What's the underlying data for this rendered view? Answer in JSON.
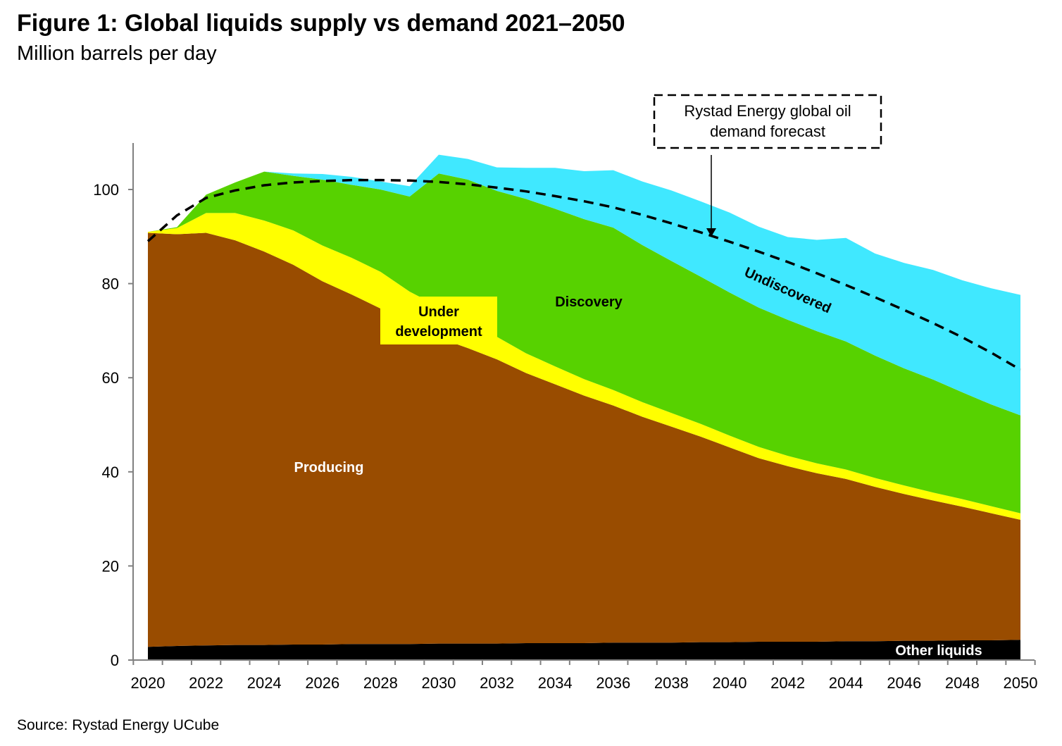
{
  "title": "Figure 1: Global liquids supply vs demand 2021–2050",
  "subtitle": "Million barrels per day",
  "source": "Source: Rystad Energy UCube",
  "chart_data": {
    "type": "area",
    "title": "Figure 1: Global liquids supply vs demand 2021–2050",
    "ylabel": "Million barrels per day",
    "xlabel": "",
    "ylim": [
      0,
      110
    ],
    "xlim": [
      2020,
      2050
    ],
    "y_ticks": [
      0,
      20,
      40,
      60,
      80,
      100
    ],
    "x_ticks": [
      2020,
      2022,
      2024,
      2026,
      2028,
      2030,
      2032,
      2034,
      2036,
      2038,
      2040,
      2042,
      2044,
      2046,
      2048,
      2050
    ],
    "x": [
      2020,
      2021,
      2022,
      2023,
      2024,
      2025,
      2026,
      2027,
      2028,
      2029,
      2030,
      2031,
      2032,
      2033,
      2034,
      2035,
      2036,
      2037,
      2038,
      2039,
      2040,
      2041,
      2042,
      2043,
      2044,
      2045,
      2046,
      2047,
      2048,
      2049,
      2050
    ],
    "series": [
      {
        "name": "Other liquids",
        "color": "#000000",
        "values": [
          2.8,
          3.0,
          3.1,
          3.2,
          3.2,
          3.3,
          3.3,
          3.4,
          3.4,
          3.4,
          3.5,
          3.5,
          3.5,
          3.6,
          3.6,
          3.6,
          3.7,
          3.7,
          3.7,
          3.8,
          3.8,
          3.9,
          3.9,
          3.9,
          4.0,
          4.0,
          4.1,
          4.1,
          4.2,
          4.2,
          4.3
        ]
      },
      {
        "name": "Producing",
        "color": "#994C00",
        "values": [
          88.0,
          87.5,
          87.7,
          86.0,
          83.6,
          80.7,
          77.2,
          74.3,
          71.3,
          67.6,
          65.0,
          62.8,
          60.4,
          57.4,
          55.0,
          52.6,
          50.4,
          48.0,
          45.9,
          43.7,
          41.4,
          39.0,
          37.3,
          35.8,
          34.5,
          32.8,
          31.2,
          29.8,
          28.4,
          27.0,
          25.5
        ]
      },
      {
        "name": "Under development",
        "color": "#FFFF00",
        "values": [
          0.2,
          1.3,
          4.2,
          5.8,
          6.6,
          7.3,
          7.6,
          7.8,
          7.8,
          7.3,
          6.6,
          5.8,
          4.8,
          4.2,
          3.8,
          3.5,
          3.3,
          3.1,
          2.9,
          2.7,
          2.5,
          2.4,
          2.2,
          2.1,
          2.0,
          1.9,
          1.8,
          1.7,
          1.6,
          1.5,
          1.4
        ]
      },
      {
        "name": "Discovery",
        "color": "#57D200",
        "values": [
          0.0,
          0.2,
          3.9,
          6.5,
          10.4,
          11.6,
          14.0,
          15.5,
          17.5,
          20.2,
          28.3,
          30.0,
          31.0,
          32.8,
          33.5,
          34.0,
          34.5,
          33.4,
          32.3,
          31.3,
          30.4,
          29.6,
          28.9,
          28.1,
          27.2,
          26.0,
          24.9,
          24.0,
          22.7,
          21.6,
          20.8
        ]
      },
      {
        "name": "Undiscovered",
        "color": "#40E8FF",
        "values": [
          0.0,
          0.0,
          0.0,
          0.0,
          0.0,
          0.5,
          1.2,
          1.7,
          1.7,
          2.2,
          4.0,
          4.4,
          5.0,
          6.6,
          8.7,
          10.2,
          12.2,
          13.5,
          15.0,
          16.0,
          17.0,
          17.2,
          17.6,
          19.4,
          22.0,
          21.7,
          22.4,
          23.3,
          23.8,
          24.7,
          25.6
        ]
      }
    ],
    "demand_forecast": {
      "name": "Rystad Energy global oil demand forecast",
      "style": "dashed",
      "color": "#000000",
      "values": [
        89.0,
        94.5,
        98.2,
        99.8,
        100.9,
        101.5,
        101.8,
        102.0,
        102.0,
        101.9,
        101.6,
        101.1,
        100.4,
        99.6,
        98.6,
        97.5,
        96.2,
        94.6,
        92.8,
        90.9,
        88.9,
        86.8,
        84.6,
        82.2,
        79.7,
        77.1,
        74.4,
        71.6,
        68.6,
        65.3,
        61.7
      ]
    },
    "annotations": [
      {
        "text": "Producing",
        "color": "#FFFFFF"
      },
      {
        "text": "Under development",
        "line1": "Under",
        "line2": "development",
        "color": "#000000",
        "background": "#FFFF00"
      },
      {
        "text": "Discovery",
        "color": "#000000"
      },
      {
        "text": "Undiscovered",
        "color": "#000000"
      },
      {
        "text": "Other liquids",
        "color": "#FFFFFF"
      },
      {
        "text": "Rystad Energy global oil demand forecast",
        "line1": "Rystad Energy global oil",
        "line2": "demand forecast",
        "style": "dashed-box-callout"
      }
    ]
  }
}
